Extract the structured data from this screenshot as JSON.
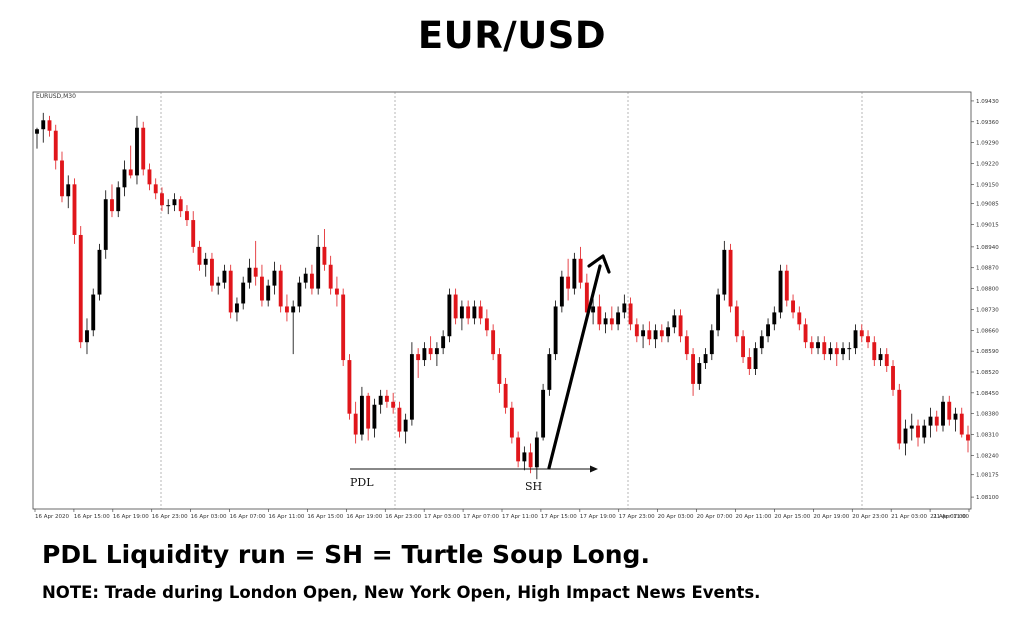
{
  "title": "EUR/USD",
  "chart_data": {
    "type": "candlestick",
    "symbol_label": "EURUSD,M30",
    "y_ticks": [
      "1.09430",
      "1.09360",
      "1.09290",
      "1.09220",
      "1.09150",
      "1.09085",
      "1.09015",
      "1.08940",
      "1.08870",
      "1.08800",
      "1.08730",
      "1.08660",
      "1.08590",
      "1.08520",
      "1.08450",
      "1.08380",
      "1.08310",
      "1.08240",
      "1.08175",
      "1.08100"
    ],
    "ylim": [
      1.0806,
      1.0946
    ],
    "x_ticks": [
      "16 Apr 2020",
      "16 Apr 15:00",
      "16 Apr 19:00",
      "16 Apr 23:00",
      "16 Apr 03:00",
      "16 Apr 07:00",
      "16 Apr 11:00",
      "16 Apr 15:00",
      "16 Apr 19:00",
      "16 Apr 23:00",
      "17 Apr 03:00",
      "17 Apr 07:00",
      "17 Apr 11:00",
      "17 Apr 15:00",
      "17 Apr 19:00",
      "17 Apr 23:00",
      "20 Apr 03:00",
      "20 Apr 07:00",
      "20 Apr 11:00",
      "20 Apr 15:00",
      "20 Apr 19:00",
      "20 Apr 23:00",
      "21 Apr 03:00",
      "21 Apr 07:00",
      "21 Apr 11:00"
    ],
    "annotations": {
      "pdl_label": "PDL",
      "sh_label": "SH"
    },
    "candles": [
      [
        1.0932,
        1.0934,
        1.0927,
        1.09335
      ],
      [
        1.09335,
        1.0939,
        1.0929,
        1.09365
      ],
      [
        1.09365,
        1.0938,
        1.0931,
        1.0933
      ],
      [
        1.0933,
        1.0935,
        1.092,
        1.0923
      ],
      [
        1.0923,
        1.0926,
        1.0909,
        1.0911
      ],
      [
        1.0911,
        1.0918,
        1.0907,
        1.0915
      ],
      [
        1.0915,
        1.0917,
        1.0895,
        1.0898
      ],
      [
        1.0898,
        1.0901,
        1.086,
        1.0862
      ],
      [
        1.0862,
        1.087,
        1.0858,
        1.0866
      ],
      [
        1.0866,
        1.088,
        1.0864,
        1.0878
      ],
      [
        1.0878,
        1.0895,
        1.0876,
        1.0893
      ],
      [
        1.0893,
        1.0913,
        1.089,
        1.091
      ],
      [
        1.091,
        1.0915,
        1.0904,
        1.0906
      ],
      [
        1.0906,
        1.0916,
        1.0904,
        1.0914
      ],
      [
        1.0914,
        1.0923,
        1.0911,
        1.092
      ],
      [
        1.092,
        1.0928,
        1.0917,
        1.0918
      ],
      [
        1.0918,
        1.0938,
        1.0915,
        1.0934
      ],
      [
        1.0934,
        1.0936,
        1.0918,
        1.092
      ],
      [
        1.092,
        1.0922,
        1.0913,
        1.0915
      ],
      [
        1.0915,
        1.0917,
        1.091,
        1.0912
      ],
      [
        1.0912,
        1.0914,
        1.0906,
        1.0908
      ],
      [
        1.0908,
        1.091,
        1.0905,
        1.0908
      ],
      [
        1.0908,
        1.0912,
        1.0906,
        1.091
      ],
      [
        1.091,
        1.0911,
        1.0904,
        1.0906
      ],
      [
        1.0906,
        1.0908,
        1.0901,
        1.0903
      ],
      [
        1.0903,
        1.0906,
        1.0892,
        1.0894
      ],
      [
        1.0894,
        1.0896,
        1.0886,
        1.0888
      ],
      [
        1.0888,
        1.0892,
        1.0884,
        1.089
      ],
      [
        1.089,
        1.0892,
        1.0879,
        1.0881
      ],
      [
        1.0881,
        1.0884,
        1.0878,
        1.0882
      ],
      [
        1.0882,
        1.0888,
        1.088,
        1.0886
      ],
      [
        1.0886,
        1.0888,
        1.087,
        1.0872
      ],
      [
        1.0872,
        1.0877,
        1.0869,
        1.0875
      ],
      [
        1.0875,
        1.0884,
        1.0873,
        1.0882
      ],
      [
        1.0882,
        1.089,
        1.088,
        1.0887
      ],
      [
        1.0887,
        1.0896,
        1.0881,
        1.0884
      ],
      [
        1.0884,
        1.0888,
        1.0874,
        1.0876
      ],
      [
        1.0876,
        1.0883,
        1.0874,
        1.0881
      ],
      [
        1.0881,
        1.0889,
        1.0878,
        1.0886
      ],
      [
        1.0886,
        1.0888,
        1.0872,
        1.0874
      ],
      [
        1.0874,
        1.0878,
        1.0869,
        1.0872
      ],
      [
        1.0872,
        1.0876,
        1.0858,
        1.0874
      ],
      [
        1.0874,
        1.0884,
        1.0872,
        1.0882
      ],
      [
        1.0882,
        1.0887,
        1.088,
        1.0885
      ],
      [
        1.0885,
        1.0888,
        1.0878,
        1.088
      ],
      [
        1.088,
        1.0898,
        1.0878,
        1.0894
      ],
      [
        1.0894,
        1.09,
        1.0886,
        1.0888
      ],
      [
        1.0888,
        1.0891,
        1.0878,
        1.088
      ],
      [
        1.088,
        1.0884,
        1.0874,
        1.0878
      ],
      [
        1.0878,
        1.088,
        1.0854,
        1.0856
      ],
      [
        1.0856,
        1.0858,
        1.0836,
        1.0838
      ],
      [
        1.0838,
        1.0842,
        1.0828,
        1.0831
      ],
      [
        1.0831,
        1.0847,
        1.0829,
        1.0844
      ],
      [
        1.0844,
        1.0845,
        1.0829,
        1.0833
      ],
      [
        1.0833,
        1.0843,
        1.083,
        1.0841
      ],
      [
        1.0841,
        1.0846,
        1.0838,
        1.0844
      ],
      [
        1.0844,
        1.0846,
        1.084,
        1.0842
      ],
      [
        1.0842,
        1.0845,
        1.0838,
        1.084
      ],
      [
        1.084,
        1.0842,
        1.083,
        1.0832
      ],
      [
        1.0832,
        1.0838,
        1.0828,
        1.0836
      ],
      [
        1.0836,
        1.0862,
        1.0834,
        1.0858
      ],
      [
        1.0858,
        1.086,
        1.085,
        1.0856
      ],
      [
        1.0856,
        1.0862,
        1.0854,
        1.086
      ],
      [
        1.086,
        1.0864,
        1.0856,
        1.0858
      ],
      [
        1.0858,
        1.0862,
        1.0854,
        1.086
      ],
      [
        1.086,
        1.0866,
        1.0858,
        1.0864
      ],
      [
        1.0864,
        1.088,
        1.0862,
        1.0878
      ],
      [
        1.0878,
        1.088,
        1.0868,
        1.087
      ],
      [
        1.087,
        1.0876,
        1.0866,
        1.0874
      ],
      [
        1.0874,
        1.0876,
        1.0868,
        1.087
      ],
      [
        1.087,
        1.0876,
        1.0868,
        1.0874
      ],
      [
        1.0874,
        1.0876,
        1.0868,
        1.087
      ],
      [
        1.087,
        1.0873,
        1.0864,
        1.0866
      ],
      [
        1.0866,
        1.0868,
        1.0856,
        1.0858
      ],
      [
        1.0858,
        1.086,
        1.0845,
        1.0848
      ],
      [
        1.0848,
        1.085,
        1.0838,
        1.084
      ],
      [
        1.084,
        1.0842,
        1.0828,
        1.083
      ],
      [
        1.083,
        1.0832,
        1.082,
        1.0822
      ],
      [
        1.0822,
        1.0827,
        1.0819,
        1.0825
      ],
      [
        1.0825,
        1.0828,
        1.0818,
        1.082
      ],
      [
        1.082,
        1.0832,
        1.0816,
        1.083
      ],
      [
        1.083,
        1.0848,
        1.0829,
        1.0846
      ],
      [
        1.0846,
        1.086,
        1.0844,
        1.0858
      ],
      [
        1.0858,
        1.0876,
        1.0856,
        1.0874
      ],
      [
        1.0874,
        1.0886,
        1.0872,
        1.0884
      ],
      [
        1.0884,
        1.089,
        1.0876,
        1.088
      ],
      [
        1.088,
        1.0892,
        1.0878,
        1.089
      ],
      [
        1.089,
        1.0894,
        1.088,
        1.0882
      ],
      [
        1.0882,
        1.0885,
        1.087,
        1.0872
      ],
      [
        1.0872,
        1.0879,
        1.0868,
        1.0874
      ],
      [
        1.0874,
        1.0878,
        1.0866,
        1.0868
      ],
      [
        1.0868,
        1.0872,
        1.0865,
        1.087
      ],
      [
        1.087,
        1.0874,
        1.0866,
        1.0868
      ],
      [
        1.0868,
        1.0874,
        1.0866,
        1.0872
      ],
      [
        1.0872,
        1.0878,
        1.087,
        1.0875
      ],
      [
        1.0875,
        1.0877,
        1.0866,
        1.0868
      ],
      [
        1.0868,
        1.087,
        1.0862,
        1.0864
      ],
      [
        1.0864,
        1.0868,
        1.086,
        1.0866
      ],
      [
        1.0866,
        1.0869,
        1.0861,
        1.0863
      ],
      [
        1.0863,
        1.0868,
        1.086,
        1.0866
      ],
      [
        1.0866,
        1.0868,
        1.0862,
        1.0864
      ],
      [
        1.0864,
        1.0869,
        1.0862,
        1.0867
      ],
      [
        1.0867,
        1.0873,
        1.0865,
        1.0871
      ],
      [
        1.0871,
        1.0873,
        1.0862,
        1.0864
      ],
      [
        1.0864,
        1.0866,
        1.0856,
        1.0858
      ],
      [
        1.0858,
        1.086,
        1.0844,
        1.0848
      ],
      [
        1.0848,
        1.0857,
        1.0846,
        1.0855
      ],
      [
        1.0855,
        1.086,
        1.0853,
        1.0858
      ],
      [
        1.0858,
        1.0868,
        1.0856,
        1.0866
      ],
      [
        1.0866,
        1.088,
        1.0864,
        1.0878
      ],
      [
        1.0878,
        1.0896,
        1.0876,
        1.0893
      ],
      [
        1.0893,
        1.0895,
        1.0872,
        1.0874
      ],
      [
        1.0874,
        1.0876,
        1.0862,
        1.0864
      ],
      [
        1.0864,
        1.0866,
        1.0855,
        1.0857
      ],
      [
        1.0857,
        1.086,
        1.0851,
        1.0853
      ],
      [
        1.0853,
        1.0862,
        1.0851,
        1.086
      ],
      [
        1.086,
        1.0866,
        1.0858,
        1.0864
      ],
      [
        1.0864,
        1.087,
        1.0862,
        1.0868
      ],
      [
        1.0868,
        1.0874,
        1.0866,
        1.0872
      ],
      [
        1.0872,
        1.0888,
        1.087,
        1.0886
      ],
      [
        1.0886,
        1.0888,
        1.0874,
        1.0876
      ],
      [
        1.0876,
        1.0878,
        1.087,
        1.0872
      ],
      [
        1.0872,
        1.0874,
        1.0866,
        1.0868
      ],
      [
        1.0868,
        1.087,
        1.086,
        1.0862
      ],
      [
        1.0862,
        1.0864,
        1.0858,
        1.086
      ],
      [
        1.086,
        1.0864,
        1.0858,
        1.0862
      ],
      [
        1.0862,
        1.0864,
        1.0856,
        1.0858
      ],
      [
        1.0858,
        1.0862,
        1.0856,
        1.086
      ],
      [
        1.086,
        1.0862,
        1.0854,
        1.0858
      ],
      [
        1.0858,
        1.0862,
        1.0856,
        1.086
      ],
      [
        1.086,
        1.0862,
        1.0856,
        1.086
      ],
      [
        1.086,
        1.0868,
        1.0858,
        1.0866
      ],
      [
        1.0866,
        1.0868,
        1.0862,
        1.0864
      ],
      [
        1.0864,
        1.0866,
        1.086,
        1.0862
      ],
      [
        1.0862,
        1.0864,
        1.0854,
        1.0856
      ],
      [
        1.0856,
        1.086,
        1.0854,
        1.0858
      ],
      [
        1.0858,
        1.086,
        1.0852,
        1.0854
      ],
      [
        1.0854,
        1.0856,
        1.0844,
        1.0846
      ],
      [
        1.0846,
        1.0848,
        1.0826,
        1.0828
      ],
      [
        1.0828,
        1.0836,
        1.0824,
        1.0833
      ],
      [
        1.0833,
        1.0838,
        1.0829,
        1.0834
      ],
      [
        1.0834,
        1.0836,
        1.0827,
        1.083
      ],
      [
        1.083,
        1.0836,
        1.0828,
        1.0834
      ],
      [
        1.0834,
        1.084,
        1.083,
        1.0837
      ],
      [
        1.0837,
        1.0839,
        1.0832,
        1.0834
      ],
      [
        1.0834,
        1.0844,
        1.0832,
        1.0842
      ],
      [
        1.0842,
        1.0844,
        1.0834,
        1.0836
      ],
      [
        1.0836,
        1.084,
        1.0832,
        1.0838
      ],
      [
        1.0838,
        1.084,
        1.083,
        1.0831
      ],
      [
        1.0831,
        1.0834,
        1.0825,
        1.0829
      ]
    ]
  },
  "caption": "PDL Liquidity run = SH = Turtle Soup Long.",
  "note": "NOTE: Trade during London Open, New York Open, High Impact News Events."
}
